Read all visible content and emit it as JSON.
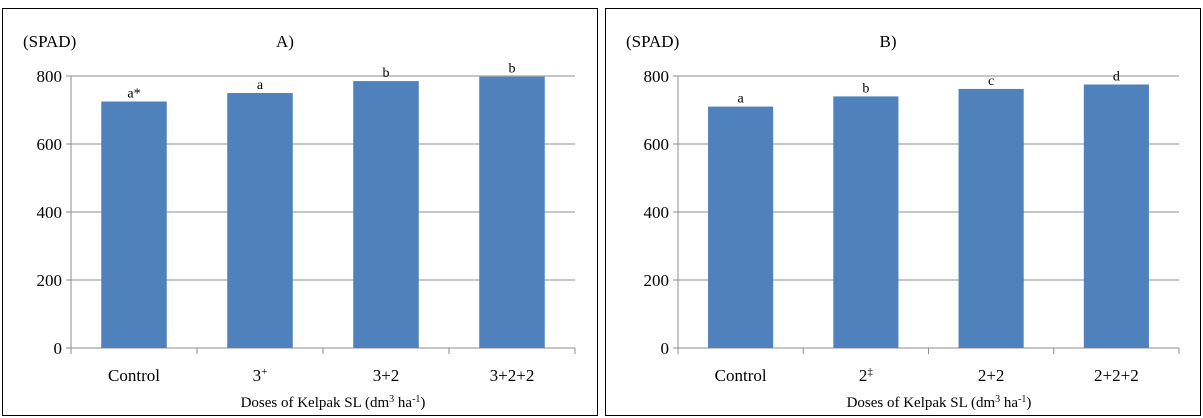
{
  "chart_data": [
    {
      "type": "bar",
      "panel_label": "A)",
      "unit_label": "(SPAD)",
      "xlabel": "Doses of Kelpak SL (dm",
      "xlabel_sup1": "3",
      "xlabel_mid": " ha",
      "xlabel_sup2": "-1",
      "xlabel_end": ")",
      "categories": [
        "Control",
        "3",
        "3+2",
        "3+2+2"
      ],
      "category_superscripts": [
        "",
        "+",
        "",
        ""
      ],
      "values": [
        725,
        750,
        785,
        798
      ],
      "bar_labels": [
        "a*",
        "a",
        "b",
        "b"
      ],
      "yticks": [
        "0",
        "200",
        "400",
        "600",
        "800"
      ],
      "ylim": [
        0,
        800
      ],
      "grid": true,
      "bar_color": "#4f81bd"
    },
    {
      "type": "bar",
      "panel_label": "B)",
      "unit_label": "(SPAD)",
      "xlabel": "Doses of Kelpak SL (dm",
      "xlabel_sup1": "3",
      "xlabel_mid": " ha",
      "xlabel_sup2": "-1",
      "xlabel_end": ")",
      "categories": [
        "Control",
        "2",
        "2+2",
        "2+2+2"
      ],
      "category_superscripts": [
        "",
        "‡",
        "",
        ""
      ],
      "values": [
        710,
        740,
        762,
        775
      ],
      "bar_labels": [
        "a",
        "b",
        "c",
        "d"
      ],
      "yticks": [
        "0",
        "200",
        "400",
        "600",
        "800"
      ],
      "ylim": [
        0,
        800
      ],
      "grid": true,
      "bar_color": "#4f81bd"
    }
  ]
}
